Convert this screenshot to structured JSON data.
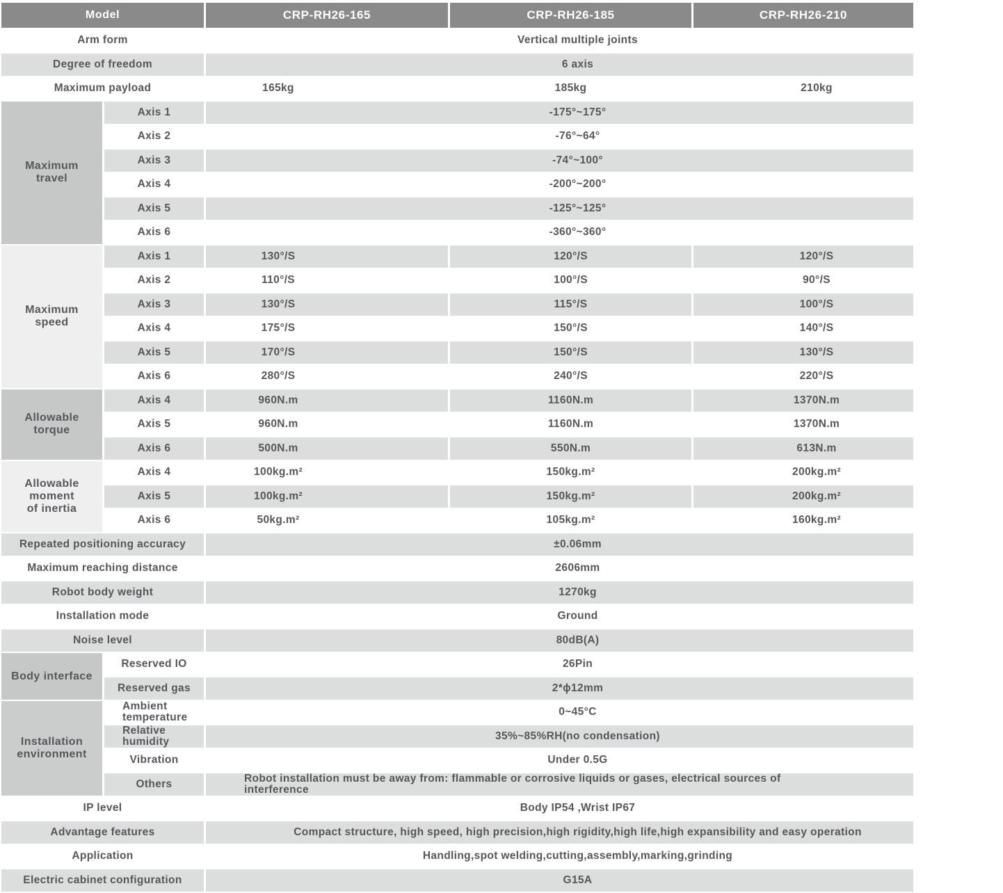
{
  "colors": {
    "header_bg": "#8a8a8a",
    "header_text": "#ffffff",
    "row_gray": "#dcdddd",
    "row_white": "#ffffff",
    "group_dark": "#c6c7c7",
    "group_light": "#efefef",
    "group_medium": "#cbcccc",
    "text": "#55575a"
  },
  "header": {
    "label": "Model",
    "models": [
      "CRP-RH26-165",
      "CRP-RH26-185",
      "CRP-RH26-210"
    ]
  },
  "sections": [
    {
      "rows": [
        {
          "label": "Arm form",
          "merged": "Vertical multiple joints"
        },
        {
          "label": "Degree of freedom",
          "merged": "6 axis"
        },
        {
          "label": "Maximum payload",
          "values": [
            "165kg",
            "185kg",
            "210kg"
          ]
        }
      ]
    },
    {
      "group": "Maximum\ntravel",
      "shade": "dark",
      "rows": [
        {
          "label": "Axis 1",
          "merged": "-175°~175°"
        },
        {
          "label": "Axis 2",
          "merged": "-76°~64°"
        },
        {
          "label": "Axis 3",
          "merged": "-74°~100°"
        },
        {
          "label": "Axis 4",
          "merged": "-200°~200°"
        },
        {
          "label": "Axis 5",
          "merged": "-125°~125°"
        },
        {
          "label": "Axis 6",
          "merged": "-360°~360°"
        }
      ]
    },
    {
      "group": "Maximum\nspeed",
      "shade": "light",
      "rows": [
        {
          "label": "Axis 1",
          "values": [
            "130°/S",
            "120°/S",
            "120°/S"
          ]
        },
        {
          "label": "Axis 2",
          "values": [
            "110°/S",
            "100°/S",
            "90°/S"
          ]
        },
        {
          "label": "Axis 3",
          "values": [
            "130°/S",
            "115°/S",
            "100°/S"
          ]
        },
        {
          "label": "Axis 4",
          "values": [
            "175°/S",
            "150°/S",
            "140°/S"
          ]
        },
        {
          "label": "Axis 5",
          "values": [
            "170°/S",
            "150°/S",
            "130°/S"
          ]
        },
        {
          "label": "Axis 6",
          "values": [
            "280°/S",
            "240°/S",
            "220°/S"
          ]
        }
      ]
    },
    {
      "group": "Allowable\ntorque",
      "shade": "dark",
      "rows": [
        {
          "label": "Axis 4",
          "values": [
            "960N.m",
            "1160N.m",
            "1370N.m"
          ]
        },
        {
          "label": "Axis 5",
          "values": [
            "960N.m",
            "1160N.m",
            "1370N.m"
          ]
        },
        {
          "label": "Axis 6",
          "values": [
            "500N.m",
            "550N.m",
            "613N.m"
          ]
        }
      ]
    },
    {
      "group": "Allowable\nmoment\nof inertia",
      "shade": "light",
      "rows": [
        {
          "label": "Axis 4",
          "values": [
            "100kg.m²",
            "150kg.m²",
            "200kg.m²"
          ]
        },
        {
          "label": "Axis 5",
          "values": [
            "100kg.m²",
            "150kg.m²",
            "200kg.m²"
          ]
        },
        {
          "label": "Axis 6",
          "values": [
            "50kg.m²",
            "105kg.m²",
            "160kg.m²"
          ]
        }
      ]
    },
    {
      "rows": [
        {
          "label": "Repeated positioning accuracy",
          "merged": "±0.06mm"
        },
        {
          "label": "Maximum reaching distance",
          "merged": "2606mm"
        },
        {
          "label": "Robot body weight",
          "merged": "1270kg"
        },
        {
          "label": "Installation mode",
          "merged": "Ground"
        },
        {
          "label": "Noise level",
          "merged": "80dB(A)"
        }
      ]
    },
    {
      "group": "Body interface",
      "shade": "dark",
      "rows": [
        {
          "label": "Reserved IO",
          "merged": "26Pin"
        },
        {
          "label": "Reserved gas",
          "merged": "2*ϕ12mm"
        }
      ]
    },
    {
      "group": "Installation\nenvironment",
      "shade": "medium",
      "rows": [
        {
          "label": "Ambient\ntemperature",
          "label_align": "left",
          "merged": "0~45°C"
        },
        {
          "label": "Relative\nhumidity",
          "label_align": "left",
          "merged": "35%~85%RH(no condensation)"
        },
        {
          "label": "Vibration",
          "merged": "Under 0.5G"
        },
        {
          "label": "Others",
          "merged": "Robot installation must be away from: flammable or corrosive liquids or gases, electrical sources of\ninterference",
          "value_align": "left"
        }
      ]
    },
    {
      "rows": [
        {
          "label": "IP level",
          "merged": "Body IP54 ,Wrist IP67"
        },
        {
          "label": "Advantage features",
          "merged": "Compact structure, high speed, high precision,high rigidity,high life,high expansibility and easy operation"
        },
        {
          "label": "Application",
          "merged": "Handling,spot welding,cutting,assembly,marking,grinding"
        },
        {
          "label": "Electric cabinet configuration",
          "merged": "G15A"
        }
      ]
    }
  ]
}
